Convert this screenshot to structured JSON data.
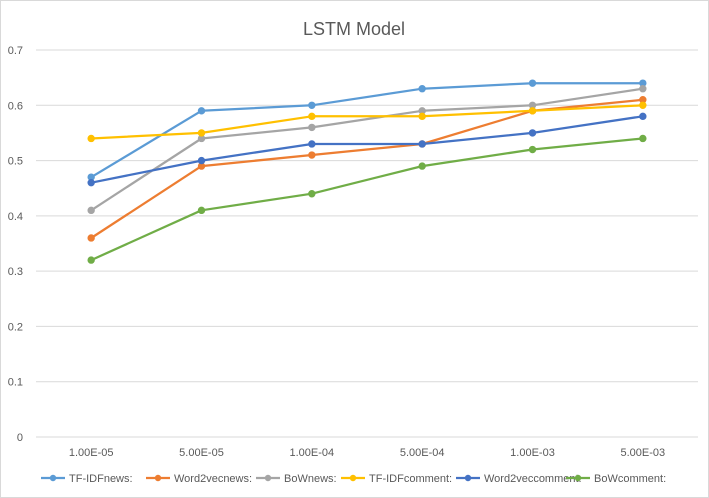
{
  "chart_data": {
    "type": "line",
    "title": "LSTM Model",
    "xlabel": "",
    "ylabel": "",
    "categories": [
      "1.00E-05",
      "5.00E-05",
      "1.00E-04",
      "5.00E-04",
      "1.00E-03",
      "5.00E-03"
    ],
    "ylim": [
      0,
      0.7
    ],
    "yticks": [
      "0",
      "0.1",
      "0.2",
      "0.3",
      "0.4",
      "0.5",
      "0.6",
      "0.7"
    ],
    "grid": true,
    "legend_position": "bottom",
    "series": [
      {
        "name": "TF-IDFnews:",
        "color": "#5B9BD5",
        "values": [
          0.47,
          0.59,
          0.6,
          0.63,
          0.64,
          0.64
        ]
      },
      {
        "name": "Word2vecnews:",
        "color": "#ED7D31",
        "values": [
          0.36,
          0.49,
          0.51,
          0.53,
          0.59,
          0.61
        ]
      },
      {
        "name": "BoWnews:",
        "color": "#A5A5A5",
        "values": [
          0.41,
          0.54,
          0.56,
          0.59,
          0.6,
          0.63
        ]
      },
      {
        "name": "TF-IDFcomment:",
        "color": "#FFC000",
        "values": [
          0.54,
          0.55,
          0.58,
          0.58,
          0.59,
          0.6
        ]
      },
      {
        "name": "Word2veccomment:",
        "color": "#4472C4",
        "values": [
          0.46,
          0.5,
          0.53,
          0.53,
          0.55,
          0.58
        ]
      },
      {
        "name": "BoWcomment:",
        "color": "#70AD47",
        "values": [
          0.32,
          0.41,
          0.44,
          0.49,
          0.52,
          0.54
        ]
      }
    ]
  }
}
